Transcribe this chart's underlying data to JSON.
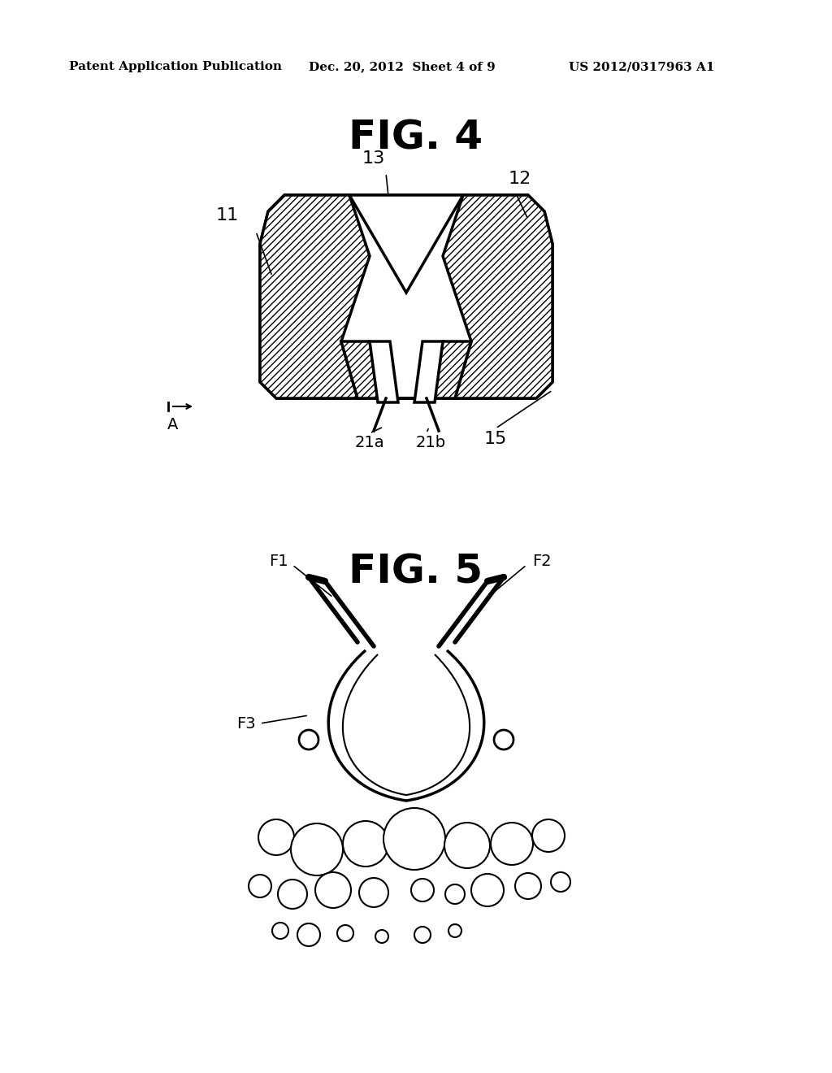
{
  "bg_color": "#ffffff",
  "header_left": "Patent Application Publication",
  "header_mid": "Dec. 20, 2012  Sheet 4 of 9",
  "header_right": "US 2012/0317963 A1",
  "fig4_title": "FIG. 4",
  "fig5_title": "FIG. 5",
  "label_11": "11",
  "label_12": "12",
  "label_13": "13",
  "label_15": "15",
  "label_21a": "21a",
  "label_21b": "21b",
  "label_A": "A",
  "label_F1": "F1",
  "label_F2": "F2",
  "label_F3": "F3"
}
